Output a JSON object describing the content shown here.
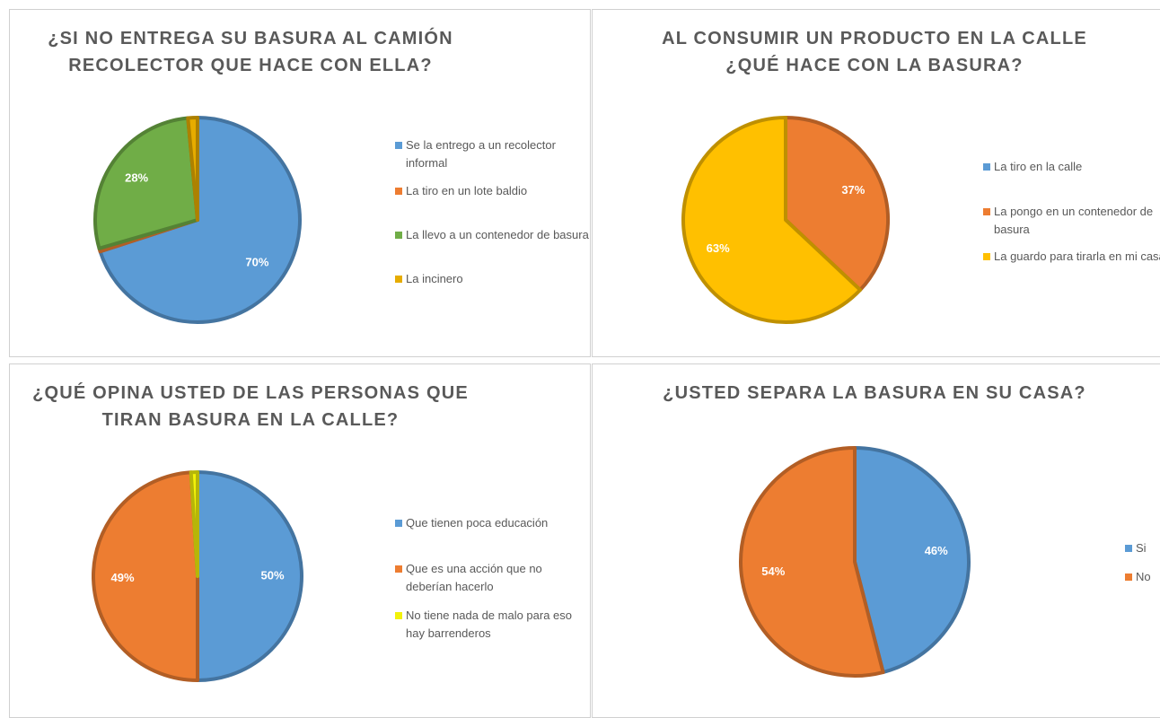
{
  "chart_data": [
    {
      "type": "pie",
      "title": [
        "¿SI NO ENTREGA SU BASURA AL CAMIÓN",
        "RECOLECTOR QUE HACE CON ELLA?"
      ],
      "categories": [
        "Se la entrego a un recolector informal",
        "La tiro en un lote baldio",
        "La llevo a un contenedor de basura",
        "La incinero"
      ],
      "values": [
        70,
        0.5,
        28,
        1.5
      ],
      "value_labels": [
        "70%",
        null,
        "28%",
        null
      ],
      "colors": [
        "#5b9bd5",
        "#ed7d31",
        "#70ad47",
        "#e6ac00"
      ]
    },
    {
      "type": "pie",
      "title": [
        "AL CONSUMIR UN PRODUCTO EN LA CALLE",
        "¿QUÉ HACE CON LA BASURA?"
      ],
      "categories": [
        "La tiro en la calle",
        "La pongo en un contenedor de basura",
        "La guardo para tirarla en mi casa"
      ],
      "values": [
        0,
        37,
        63
      ],
      "value_labels": [
        null,
        "37%",
        "63%"
      ],
      "colors": [
        "#5b9bd5",
        "#ed7d31",
        "#ffc000"
      ]
    },
    {
      "type": "pie",
      "title": [
        "¿QUÉ OPINA USTED DE LAS PERSONAS QUE",
        "TIRAN BASURA EN LA CALLE?"
      ],
      "categories": [
        "Que tienen poca educación",
        "Que es una acción que no deberían hacerlo",
        "No tiene nada de malo para eso hay barrenderos"
      ],
      "values": [
        50,
        49,
        1
      ],
      "value_labels": [
        "50%",
        "49%",
        null
      ],
      "colors": [
        "#5b9bd5",
        "#ed7d31",
        "#f2f20a"
      ]
    },
    {
      "type": "pie",
      "title": [
        "¿USTED SEPARA LA BASURA EN SU CASA?"
      ],
      "categories": [
        "Si",
        "No"
      ],
      "values": [
        46,
        54
      ],
      "value_labels": [
        "46%",
        "54%"
      ],
      "colors": [
        "#5b9bd5",
        "#ed7d31"
      ]
    }
  ]
}
